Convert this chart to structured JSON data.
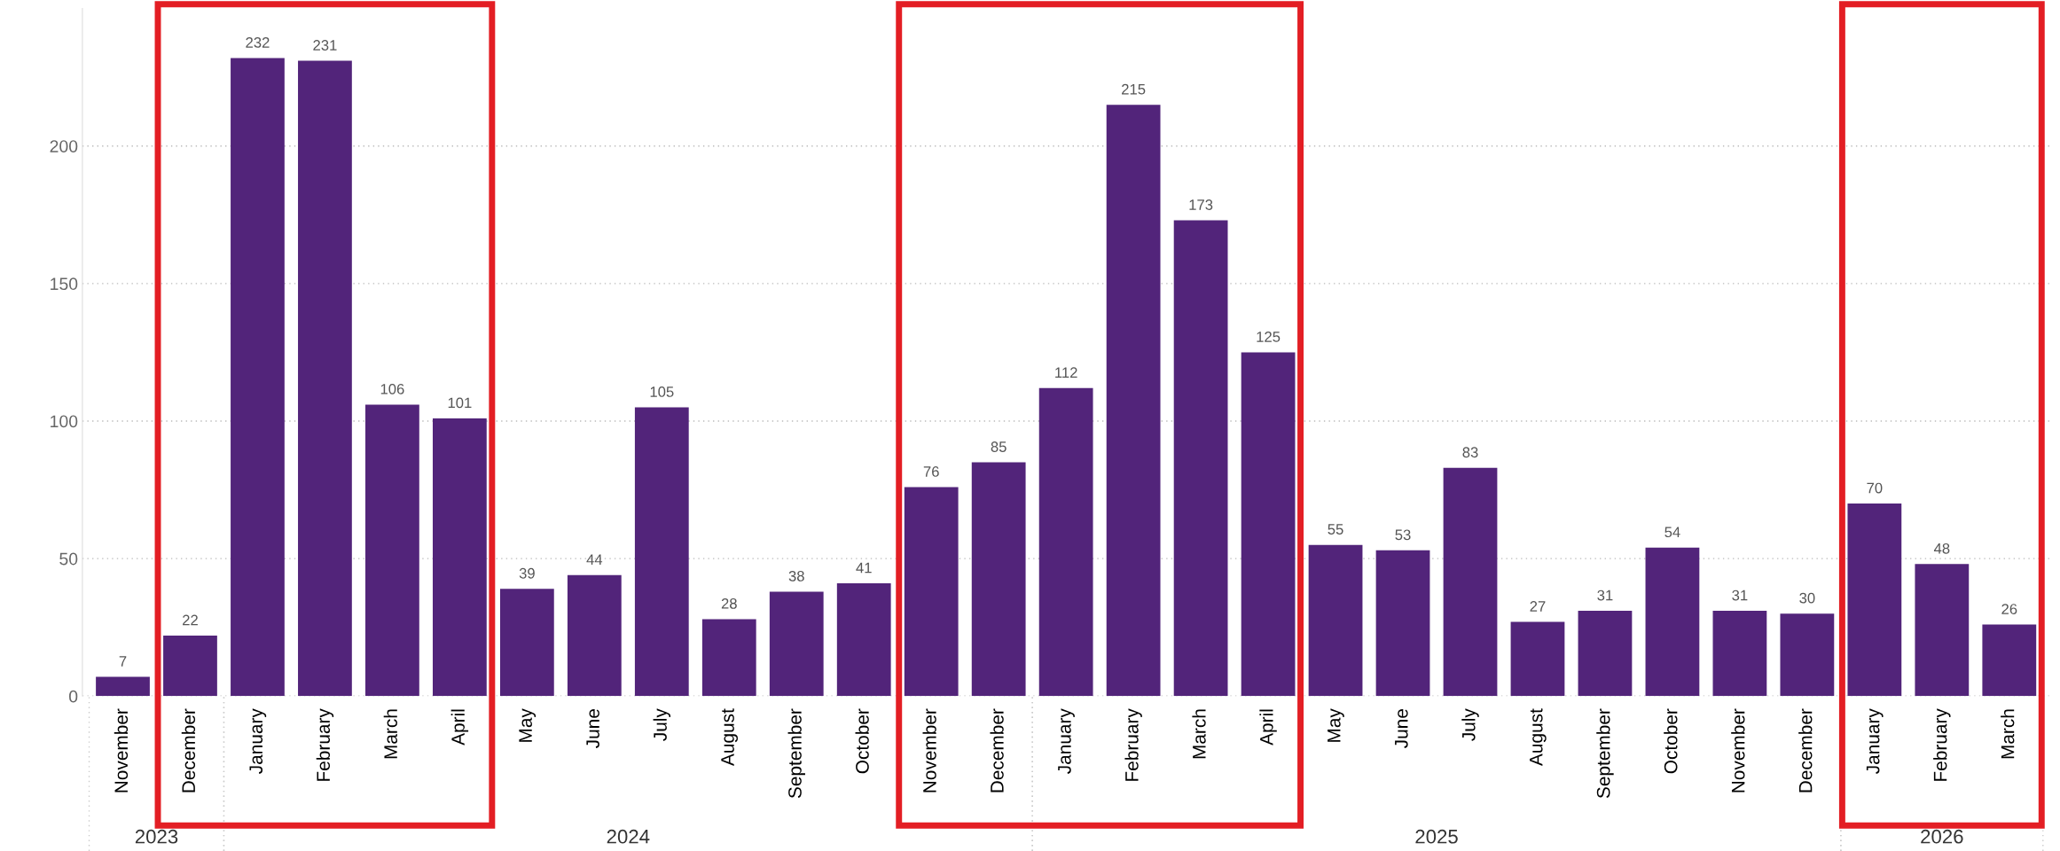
{
  "chart_data": {
    "type": "bar",
    "categories": [
      "November",
      "December",
      "January",
      "February",
      "March",
      "April",
      "May",
      "June",
      "July",
      "August",
      "September",
      "October",
      "November",
      "December",
      "January",
      "February",
      "March",
      "April",
      "May",
      "June",
      "July",
      "August",
      "September",
      "October",
      "November",
      "December",
      "January",
      "February",
      "March"
    ],
    "values": [
      7,
      22,
      232,
      231,
      106,
      101,
      39,
      44,
      105,
      28,
      38,
      41,
      76,
      85,
      112,
      215,
      173,
      125,
      55,
      53,
      83,
      27,
      31,
      54,
      31,
      30,
      70,
      48,
      26
    ],
    "color": "#52247a",
    "data_labels": true,
    "ylim": [
      0,
      250
    ],
    "yticks": [
      0,
      50,
      100,
      150,
      200
    ],
    "grid": "y",
    "annotations": [
      "2023",
      "2024",
      "2025",
      "2026"
    ]
  }
}
